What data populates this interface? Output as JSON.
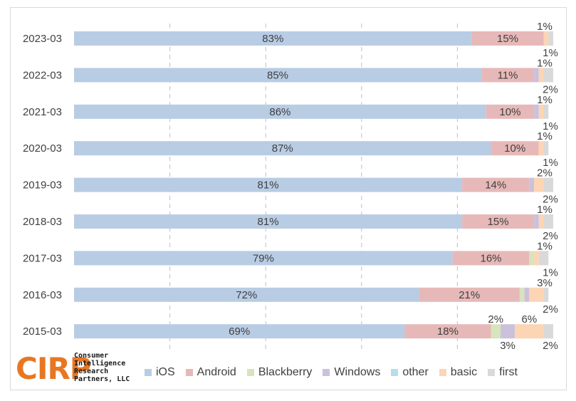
{
  "logo": {
    "mark": "CIRP",
    "text": "Consumer\nIntelligence\nResearch\nPartners, LLC"
  },
  "colors": {
    "iOS": "#b8cce4",
    "Android": "#e6b9b8",
    "Blackberry": "#d7e4bd",
    "Windows": "#ccc1da",
    "other": "#b7dee8",
    "basic": "#fcd5b5",
    "first": "#d9d9d9",
    "gridline": "#bfbfbf"
  },
  "chart_data": {
    "type": "bar",
    "orientation": "horizontal",
    "stacked": true,
    "xlim": [
      0,
      100
    ],
    "grid": "vertical dashed",
    "legend_position": "bottom",
    "categories": [
      "2023-03",
      "2022-03",
      "2021-03",
      "2020-03",
      "2019-03",
      "2018-03",
      "2017-03",
      "2016-03",
      "2015-03"
    ],
    "series": [
      {
        "name": "iOS",
        "values": [
          83,
          85,
          86,
          87,
          81,
          81,
          79,
          72,
          69
        ]
      },
      {
        "name": "Android",
        "values": [
          15,
          11,
          10,
          10,
          14,
          15,
          16,
          21,
          18
        ]
      },
      {
        "name": "Blackberry",
        "values": [
          0,
          0,
          0,
          0,
          0,
          0,
          1,
          1,
          2
        ]
      },
      {
        "name": "Windows",
        "values": [
          0,
          1,
          1,
          0,
          1,
          1,
          0,
          1,
          3
        ]
      },
      {
        "name": "other",
        "values": [
          0,
          0,
          0,
          0,
          0,
          0,
          0,
          0,
          0
        ]
      },
      {
        "name": "basic",
        "values": [
          1,
          1,
          1,
          1,
          2,
          1,
          1,
          3,
          6
        ]
      },
      {
        "name": "first",
        "values": [
          1,
          2,
          1,
          1,
          2,
          2,
          2,
          1,
          2
        ]
      }
    ],
    "small_labels": [
      [
        "1%",
        "1%"
      ],
      [
        "1%",
        "2%"
      ],
      [
        "1%",
        "1%"
      ],
      [
        "1%",
        "1%"
      ],
      [
        "2%",
        "2%"
      ],
      [
        "1%",
        "2%"
      ],
      [
        "1%",
        "1%"
      ],
      [
        "3%",
        "2%"
      ],
      [
        "2%",
        "6%",
        "3%",
        "2%"
      ]
    ]
  }
}
